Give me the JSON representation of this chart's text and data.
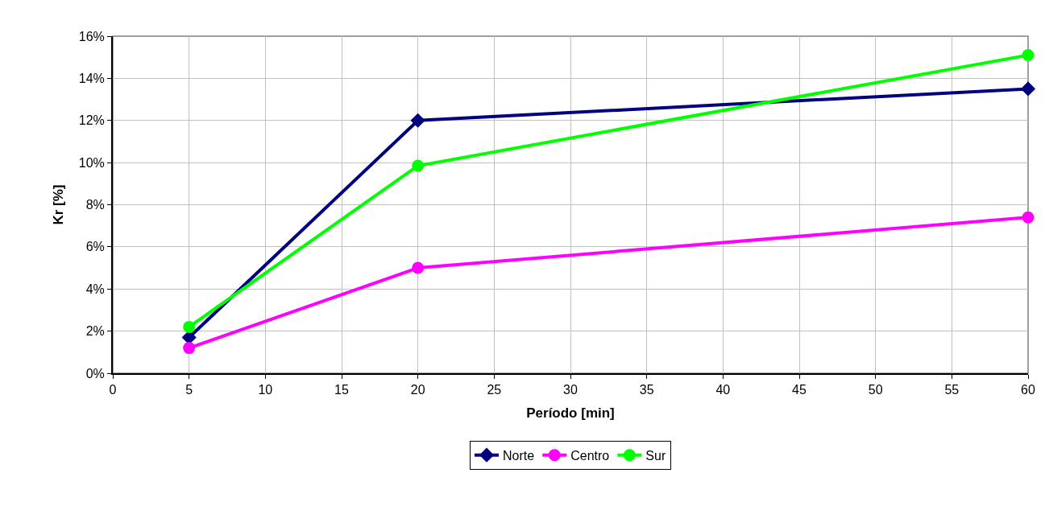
{
  "chart_data": {
    "type": "line",
    "xlabel": "Período [min]",
    "ylabel": "Kr [%]",
    "x": [
      5,
      20,
      60
    ],
    "series": [
      {
        "name": "Norte",
        "color": "#000080",
        "marker": "diamond",
        "values": [
          1.7,
          12.0,
          13.5
        ]
      },
      {
        "name": "Centro",
        "color": "#ff00ff",
        "marker": "circle",
        "values": [
          1.2,
          5.0,
          7.4
        ]
      },
      {
        "name": "Sur",
        "color": "#00ff00",
        "marker": "circle",
        "values": [
          2.2,
          9.85,
          15.1
        ]
      }
    ],
    "xlim": [
      0,
      60
    ],
    "xticks": [
      0,
      5,
      10,
      15,
      20,
      25,
      30,
      35,
      40,
      45,
      50,
      55,
      60
    ],
    "ylim": [
      0,
      16
    ],
    "yticks": [
      {
        "value": 0,
        "label": "0%"
      },
      {
        "value": 2,
        "label": "2%"
      },
      {
        "value": 4,
        "label": "4%"
      },
      {
        "value": 6,
        "label": "6%"
      },
      {
        "value": 8,
        "label": "8%"
      },
      {
        "value": 10,
        "label": "10%"
      },
      {
        "value": 12,
        "label": "12%"
      },
      {
        "value": 14,
        "label": "14%"
      },
      {
        "value": 16,
        "label": "16%"
      }
    ],
    "grid": true,
    "legend": "bottom",
    "line_style": "solid"
  }
}
